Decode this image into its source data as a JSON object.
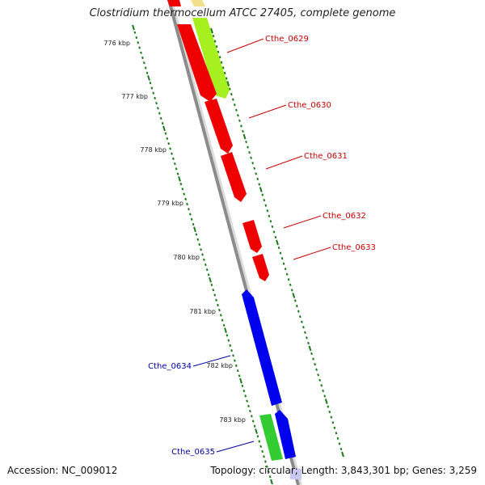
{
  "title": "Clostridium thermocellum ATCC 27405, complete genome",
  "footer": {
    "accession": "Accession: NC_009012",
    "summary": "Topology: circular; Length: 3,843,301 bp; Genes: 3,259"
  },
  "colors": {
    "backbone": "#8c8c8c",
    "ticks": "#1a7a1a",
    "red": "#ee0000",
    "lime": "#a6f020",
    "blue": "#0000ee",
    "green": "#33cc33",
    "yellow": "#f0e08a",
    "lavender": "#c8c8f0",
    "label_red": "#cc0000",
    "label_blue": "#0000aa"
  },
  "tick_labels": [
    "776 kbp",
    "777 kbp",
    "778 kbp",
    "779 kbp",
    "780 kbp",
    "781 kbp",
    "782 kbp",
    "783 kbp"
  ],
  "genes": [
    {
      "label": "Cthe_0629"
    },
    {
      "label": "Cthe_0630"
    },
    {
      "label": "Cthe_0631"
    },
    {
      "label": "Cthe_0632"
    },
    {
      "label": "Cthe_0633"
    },
    {
      "label": "Cthe_0634"
    },
    {
      "label": "Cthe_0635"
    }
  ]
}
